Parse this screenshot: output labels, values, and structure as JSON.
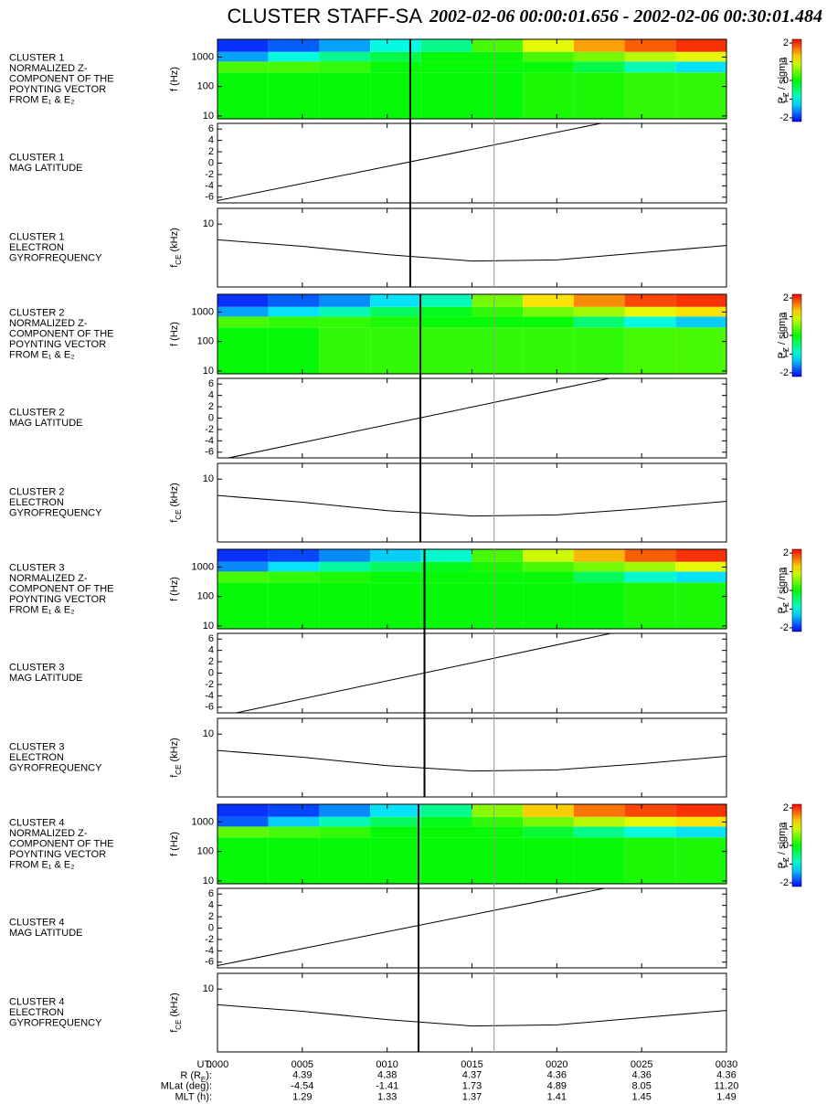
{
  "header": {
    "title": "CLUSTER STAFF-SA",
    "subtitle": "2002-02-06 00:00:01.656 - 2002-02-06 00:30:01.484"
  },
  "time_axis": {
    "xlim": [
      0,
      30
    ],
    "xticks": [
      {
        "value": 0,
        "label": "0000"
      },
      {
        "value": 5,
        "label": "0005"
      },
      {
        "value": 10,
        "label": "0010"
      },
      {
        "value": 15,
        "label": "0015"
      },
      {
        "value": 20,
        "label": "0020"
      },
      {
        "value": 25,
        "label": "0025"
      },
      {
        "value": 30,
        "label": "0030"
      }
    ]
  },
  "colorbar": {
    "label": [
      "P",
      "Z",
      " / sigma"
    ],
    "zlim": [
      -2.2,
      2.2
    ],
    "ticks": [
      -2,
      -1,
      0,
      1,
      2
    ]
  },
  "ephemeris": {
    "labels": [
      [
        "UT:"
      ],
      [
        "R (R",
        "E",
        "):"
      ],
      [
        "MLat (deg):"
      ],
      [
        "MLT (h):"
      ]
    ],
    "rows": [
      [
        "4.39",
        "4.38",
        "4.37",
        "4.36",
        "4.36",
        "4.36"
      ],
      [
        "-4.54",
        "-1.41",
        "1.73",
        "4.89",
        "8.05",
        "11.20"
      ],
      [
        "1.29",
        "1.33",
        "1.37",
        "1.41",
        "1.45",
        "1.49"
      ]
    ]
  },
  "chart_data": [
    {
      "type": "heatmap",
      "label": [
        "CLUSTER 1",
        "NORMALIZED Z-",
        "COMPONENT OF THE",
        "POYNTING VECTOR",
        "FROM E₁ & E₂"
      ],
      "ylabel": "f (Hz)",
      "yscale": "log",
      "ylim": [
        8,
        4000
      ],
      "yticks": [
        10,
        100,
        1000
      ],
      "x": [
        0,
        3,
        6,
        9,
        12,
        15,
        18,
        21,
        24,
        27,
        30
      ],
      "y": [
        8,
        300,
        700,
        1500,
        4000
      ],
      "values": [
        [
          0,
          0,
          0,
          0,
          0,
          0,
          0.1,
          0.1,
          0.2,
          0.2
        ],
        [
          0.3,
          0.3,
          0.2,
          0,
          0,
          0,
          0,
          -0.3,
          -0.8,
          -1.2
        ],
        [
          -1.5,
          -1,
          -0.6,
          -0.3,
          0,
          0,
          0.3,
          0.5,
          0.8,
          1
        ],
        [
          -2,
          -1.8,
          -1.5,
          -1,
          -0.6,
          0.3,
          1,
          1.5,
          1.8,
          2
        ]
      ],
      "vlines": [
        {
          "x": 11.36,
          "color": "#000000"
        },
        {
          "x": 16.3,
          "color": "#999999"
        }
      ]
    },
    {
      "type": "line",
      "label": [
        "CLUSTER 1",
        "MAG LATITUDE"
      ],
      "ylim": [
        -7,
        7
      ],
      "yticks": [
        -6,
        -4,
        -2,
        0,
        2,
        4,
        6
      ],
      "x": [
        0,
        22.6
      ],
      "values": [
        -6.6,
        7
      ]
    },
    {
      "type": "line",
      "label": [
        "CLUSTER 1",
        "ELECTRON",
        "GYROFREQUENCY"
      ],
      "ylabel": [
        "f",
        "CE",
        " (kHz)"
      ],
      "yscale": "log",
      "ylim": [
        3.5,
        13
      ],
      "yticks": [
        10
      ],
      "x": [
        0,
        5,
        10,
        15,
        20,
        25,
        30
      ],
      "values": [
        7.7,
        6.9,
        6.0,
        5.4,
        5.5,
        6.2,
        7.0
      ]
    },
    {
      "type": "heatmap",
      "label": [
        "CLUSTER 2",
        "NORMALIZED Z-",
        "COMPONENT OF THE",
        "POYNTING VECTOR",
        "FROM E₁ & E₂"
      ],
      "ylabel": "f (Hz)",
      "yscale": "log",
      "ylim": [
        8,
        4000
      ],
      "yticks": [
        10,
        100,
        1000
      ],
      "x": [
        0,
        3,
        6,
        9,
        12,
        15,
        18,
        21,
        24,
        27,
        30
      ],
      "y": [
        8,
        300,
        700,
        1500,
        4000
      ],
      "values": [
        [
          0,
          0,
          0.2,
          0.2,
          0.2,
          0.2,
          0.2,
          0.2,
          0.3,
          0.3
        ],
        [
          0.3,
          0.2,
          0.2,
          0.1,
          0,
          0,
          0,
          -0.5,
          -1,
          -1.3
        ],
        [
          -1.5,
          -1.2,
          -0.8,
          -0.4,
          -0.1,
          0.2,
          0.5,
          0.7,
          1,
          1.2
        ],
        [
          -2,
          -1.8,
          -1.6,
          -1.2,
          -0.8,
          0.5,
          1.2,
          1.6,
          1.9,
          2
        ]
      ],
      "vlines": [
        {
          "x": 11.96,
          "color": "#000000"
        },
        {
          "x": 16.3,
          "color": "#999999"
        }
      ]
    },
    {
      "type": "line",
      "label": [
        "CLUSTER 2",
        "MAG LATITUDE"
      ],
      "ylim": [
        -7,
        7
      ],
      "yticks": [
        -6,
        -4,
        -2,
        0,
        2,
        4,
        6
      ],
      "x": [
        0.65,
        23.1
      ],
      "values": [
        -7,
        7
      ]
    },
    {
      "type": "line",
      "label": [
        "CLUSTER 2",
        "ELECTRON",
        "GYROFREQUENCY"
      ],
      "ylabel": [
        "f",
        "CE",
        " (kHz)"
      ],
      "yscale": "log",
      "ylim": [
        3.5,
        13
      ],
      "yticks": [
        10
      ],
      "x": [
        0,
        5,
        10,
        15,
        20,
        25,
        30
      ],
      "values": [
        7.6,
        6.8,
        5.9,
        5.4,
        5.5,
        6.1,
        6.9
      ]
    },
    {
      "type": "heatmap",
      "label": [
        "CLUSTER 3",
        "NORMALIZED Z-",
        "COMPONENT OF THE",
        "POYNTING VECTOR",
        "FROM E₁ & E₂"
      ],
      "ylabel": "f (Hz)",
      "yscale": "log",
      "ylim": [
        8,
        4000
      ],
      "yticks": [
        10,
        100,
        1000
      ],
      "x": [
        0,
        3,
        6,
        9,
        12,
        15,
        18,
        21,
        24,
        27,
        30
      ],
      "y": [
        8,
        300,
        700,
        1500,
        4000
      ],
      "values": [
        [
          0,
          0,
          0,
          0,
          0,
          0,
          0,
          0,
          0.1,
          0.1
        ],
        [
          0.3,
          0.2,
          0.1,
          0,
          0,
          0,
          0,
          -0.4,
          -0.9,
          -1.2
        ],
        [
          -1.6,
          -1.2,
          -0.7,
          -0.4,
          -0.1,
          0.1,
          0.3,
          0.5,
          0.7,
          1
        ],
        [
          -2,
          -1.9,
          -1.6,
          -1.3,
          -0.9,
          0.3,
          0.9,
          1.4,
          1.8,
          2
        ]
      ],
      "vlines": [
        {
          "x": 12.2,
          "color": "#000000"
        },
        {
          "x": 16.3,
          "color": "#999999"
        }
      ]
    },
    {
      "type": "line",
      "label": [
        "CLUSTER 3",
        "MAG LATITUDE"
      ],
      "ylim": [
        -7,
        7
      ],
      "yticks": [
        -6,
        -4,
        -2,
        0,
        2,
        4,
        6
      ],
      "x": [
        1.1,
        23.2
      ],
      "values": [
        -7,
        7
      ]
    },
    {
      "type": "line",
      "label": [
        "CLUSTER 3",
        "ELECTRON",
        "GYROFREQUENCY"
      ],
      "ylabel": [
        "f",
        "CE",
        " (kHz)"
      ],
      "yscale": "log",
      "ylim": [
        3.5,
        13
      ],
      "yticks": [
        10
      ],
      "x": [
        0,
        5,
        10,
        15,
        20,
        25,
        30
      ],
      "values": [
        7.6,
        6.8,
        5.9,
        5.4,
        5.5,
        6.1,
        6.9
      ]
    },
    {
      "type": "heatmap",
      "label": [
        "CLUSTER 4",
        "NORMALIZED Z-",
        "COMPONENT OF THE",
        "POYNTING VECTOR",
        "FROM E₁ & E₂"
      ],
      "ylabel": "f (Hz)",
      "yscale": "log",
      "ylim": [
        8,
        4000
      ],
      "yticks": [
        10,
        100,
        1000
      ],
      "x": [
        0,
        3,
        6,
        9,
        12,
        15,
        18,
        21,
        24,
        27,
        30
      ],
      "y": [
        8,
        300,
        700,
        1500,
        4000
      ],
      "values": [
        [
          0,
          0,
          0,
          0,
          0,
          0,
          0,
          0,
          0.1,
          0.1
        ],
        [
          0.4,
          0.3,
          0.2,
          0,
          0,
          0,
          -0.2,
          -0.6,
          -1,
          -1.2
        ],
        [
          -1.8,
          -1.3,
          -0.8,
          -0.4,
          -0.1,
          0.2,
          0.5,
          0.8,
          1,
          1.2
        ],
        [
          -2,
          -1.9,
          -1.6,
          -1.2,
          -0.6,
          0.6,
          1.3,
          1.7,
          1.9,
          2
        ]
      ],
      "vlines": [
        {
          "x": 11.85,
          "color": "#000000"
        },
        {
          "x": 16.3,
          "color": "#999999"
        }
      ]
    },
    {
      "type": "line",
      "label": [
        "CLUSTER 4",
        "MAG LATITUDE"
      ],
      "ylim": [
        -7,
        7
      ],
      "yticks": [
        -6,
        -4,
        -2,
        0,
        2,
        4,
        6
      ],
      "x": [
        0,
        22.8
      ],
      "values": [
        -6.6,
        7
      ]
    },
    {
      "type": "line",
      "label": [
        "CLUSTER 4",
        "ELECTRON",
        "GYROFREQUENCY"
      ],
      "ylabel": [
        "f",
        "CE",
        " (kHz)"
      ],
      "yscale": "log",
      "ylim": [
        3.5,
        13
      ],
      "yticks": [
        10
      ],
      "x": [
        0,
        5,
        10,
        15,
        20,
        25,
        30
      ],
      "values": [
        7.7,
        6.9,
        6.0,
        5.4,
        5.5,
        6.2,
        7.0
      ]
    }
  ]
}
